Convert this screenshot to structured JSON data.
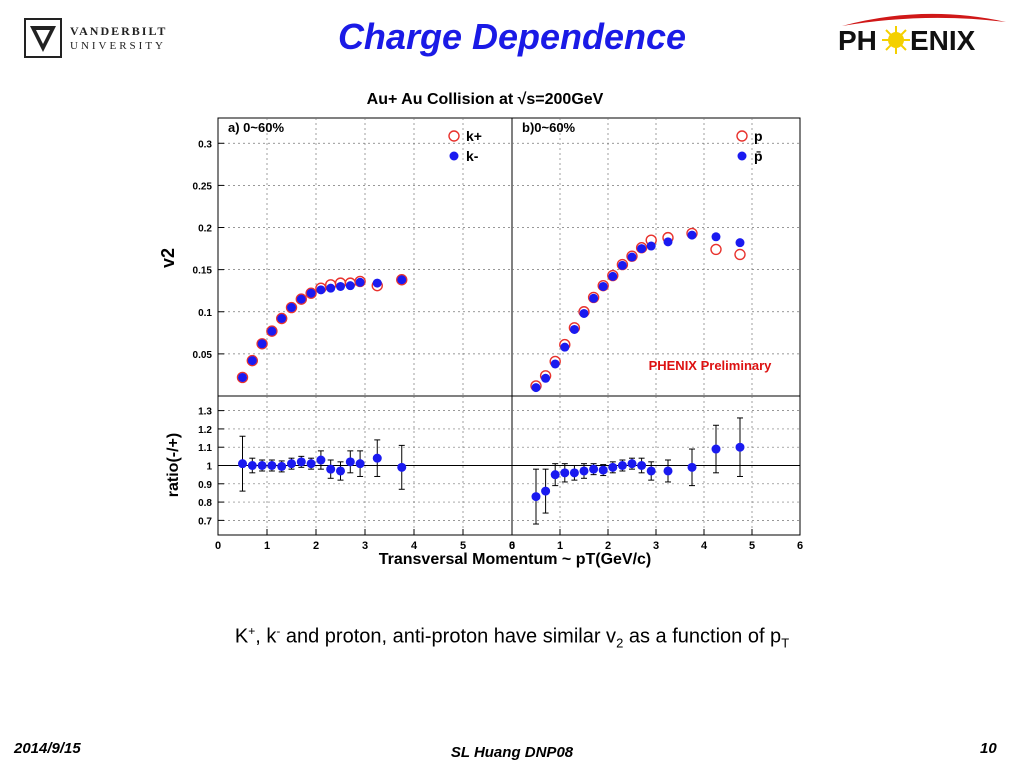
{
  "slide": {
    "title": "Charge Dependence",
    "logo_left": {
      "line1": "VANDERBILT",
      "line2": "UNIVERSITY"
    },
    "logo_right": {
      "before": "PH",
      "after": "ENIX"
    },
    "caption": {
      "k": "K",
      "k_sup": "+",
      "sep": ", k",
      "k2_sup": "-",
      "mid": " and proton, anti-proton have similar v",
      "v_sub": "2",
      "end": " as a function of p",
      "p_sub": "T"
    },
    "footer": {
      "date": "2014/9/15",
      "author": "SL Huang DNP08",
      "page": "10"
    }
  },
  "colors": {
    "title": "#1a1ae6",
    "open_marker": "#e8322d",
    "filled_marker": "#1a1af0",
    "annotation": "#dd1111"
  },
  "chart_data": {
    "type": "scatter",
    "title": "Au+ Au Collision at √s=200GeV",
    "xlabel": "Transversal Momentum ~ pT(GeV/c)",
    "xlim": [
      0,
      6
    ],
    "xticks": [
      "0",
      "1",
      "2",
      "3",
      "4",
      "5",
      "6"
    ],
    "annotation": "PHENIX Preliminary",
    "top_ylabel": "v2",
    "top_ylim": [
      0,
      0.33
    ],
    "top_yticks": [
      "0.05",
      "0.1",
      "0.15",
      "0.2",
      "0.25",
      "0.3"
    ],
    "ratio_ylabel": "ratio(-/+)",
    "ratio_ylim": [
      0.62,
      1.38
    ],
    "ratio_yticks": [
      "0.7",
      "0.8",
      "0.9",
      "1",
      "1.1",
      "1.2",
      "1.3"
    ],
    "panels": [
      {
        "label": "a) 0~60%",
        "legend": [
          "k+",
          "k-"
        ],
        "series": [
          {
            "name": "k+",
            "marker": "open-circle",
            "x": [
              0.5,
              0.7,
              0.9,
              1.1,
              1.3,
              1.5,
              1.7,
              1.9,
              2.1,
              2.3,
              2.5,
              2.7,
              2.9,
              3.25,
              3.75
            ],
            "y": [
              0.022,
              0.042,
              0.062,
              0.077,
              0.092,
              0.105,
              0.115,
              0.122,
              0.128,
              0.132,
              0.134,
              0.134,
              0.136,
              0.131,
              0.138
            ]
          },
          {
            "name": "k-",
            "marker": "filled-circle",
            "x": [
              0.5,
              0.7,
              0.9,
              1.1,
              1.3,
              1.5,
              1.7,
              1.9,
              2.1,
              2.3,
              2.5,
              2.7,
              2.9,
              3.25,
              3.75
            ],
            "y": [
              0.022,
              0.042,
              0.062,
              0.077,
              0.092,
              0.105,
              0.115,
              0.122,
              0.126,
              0.128,
              0.13,
              0.131,
              0.135,
              0.134,
              0.138
            ]
          }
        ],
        "ratio": {
          "x": [
            0.5,
            0.7,
            0.9,
            1.1,
            1.3,
            1.5,
            1.7,
            1.9,
            2.1,
            2.3,
            2.5,
            2.7,
            2.9,
            3.25,
            3.75
          ],
          "y": [
            1.01,
            1.0,
            1.0,
            1.0,
            0.995,
            1.01,
            1.02,
            1.01,
            1.03,
            0.98,
            0.97,
            1.02,
            1.01,
            1.04,
            0.99
          ],
          "err": [
            0.15,
            0.04,
            0.03,
            0.03,
            0.03,
            0.03,
            0.03,
            0.03,
            0.05,
            0.05,
            0.05,
            0.06,
            0.07,
            0.1,
            0.12
          ]
        }
      },
      {
        "label": "b)0~60%",
        "legend": [
          "p",
          "p̄"
        ],
        "series": [
          {
            "name": "p",
            "marker": "open-circle",
            "x": [
              0.5,
              0.7,
              0.9,
              1.1,
              1.3,
              1.5,
              1.7,
              1.9,
              2.1,
              2.3,
              2.5,
              2.7,
              2.9,
              3.25,
              3.75,
              4.25,
              4.75
            ],
            "y": [
              0.012,
              0.024,
              0.041,
              0.061,
              0.081,
              0.1,
              0.117,
              0.131,
              0.143,
              0.156,
              0.166,
              0.176,
              0.185,
              0.188,
              0.193,
              0.174,
              0.168
            ]
          },
          {
            "name": "p̄",
            "marker": "filled-circle",
            "x": [
              0.5,
              0.7,
              0.9,
              1.1,
              1.3,
              1.5,
              1.7,
              1.9,
              2.1,
              2.3,
              2.5,
              2.7,
              2.9,
              3.25,
              3.75,
              4.25,
              4.75
            ],
            "y": [
              0.01,
              0.021,
              0.038,
              0.058,
              0.079,
              0.098,
              0.116,
              0.13,
              0.142,
              0.155,
              0.165,
              0.175,
              0.178,
              0.183,
              0.191,
              0.189,
              0.182
            ]
          }
        ],
        "ratio": {
          "x": [
            0.5,
            0.7,
            0.9,
            1.1,
            1.3,
            1.5,
            1.7,
            1.9,
            2.1,
            2.3,
            2.5,
            2.7,
            2.9,
            3.25,
            3.75,
            4.25,
            4.75
          ],
          "y": [
            0.83,
            0.86,
            0.95,
            0.96,
            0.96,
            0.97,
            0.98,
            0.975,
            0.99,
            1.0,
            1.01,
            1.0,
            0.97,
            0.97,
            0.99,
            1.09,
            1.1
          ],
          "err": [
            0.15,
            0.12,
            0.06,
            0.05,
            0.04,
            0.04,
            0.03,
            0.03,
            0.03,
            0.03,
            0.03,
            0.04,
            0.05,
            0.06,
            0.1,
            0.13,
            0.16
          ]
        }
      }
    ]
  }
}
